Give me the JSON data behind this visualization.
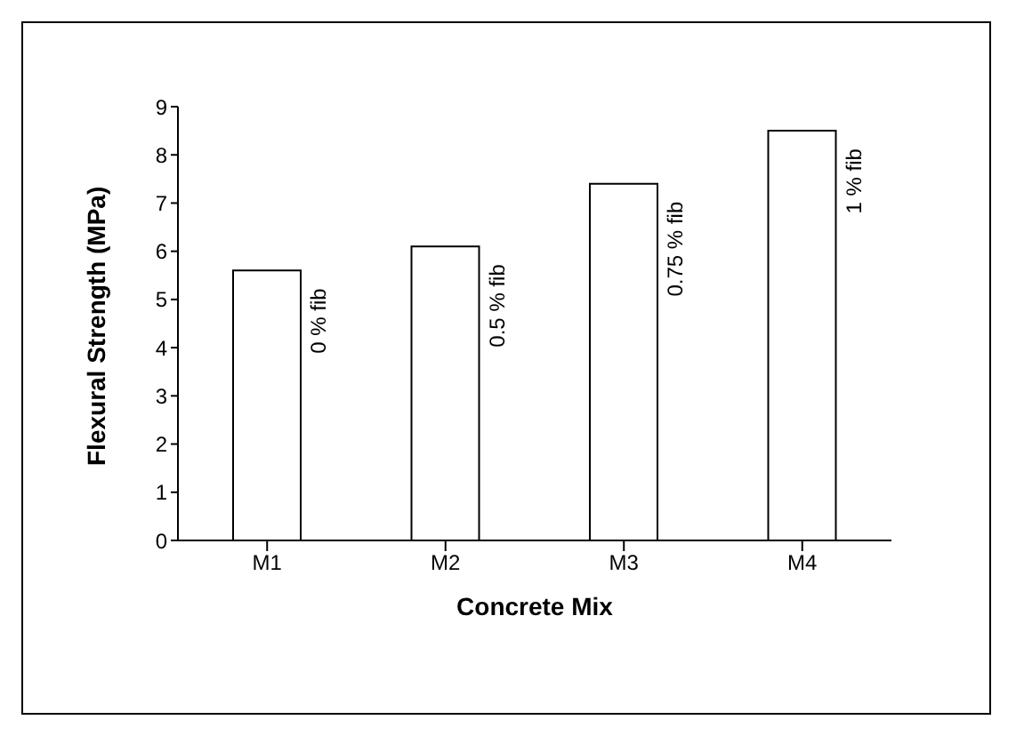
{
  "chart_data": {
    "type": "bar",
    "xlabel": "Concrete Mix",
    "ylabel": "Flexural Strength (MPa)",
    "categories": [
      "M1",
      "M2",
      "M3",
      "M4"
    ],
    "values": [
      5.6,
      6.1,
      7.4,
      8.5
    ],
    "color": "#ffffff",
    "ylim": [
      0,
      9
    ],
    "yticks": [
      0,
      1,
      2,
      3,
      4,
      5,
      6,
      7,
      8,
      9
    ],
    "grid": false,
    "legend": false,
    "annotations": [
      {
        "text": "0 % fib",
        "x": "M1",
        "y": 5.6
      },
      {
        "text": "0.5 % fib",
        "x": "M2",
        "y": 6.1
      },
      {
        "text": "0.75 % fib",
        "x": "M3",
        "y": 7.4
      },
      {
        "text": "1 % fib",
        "x": "M4",
        "y": 8.5
      }
    ]
  }
}
